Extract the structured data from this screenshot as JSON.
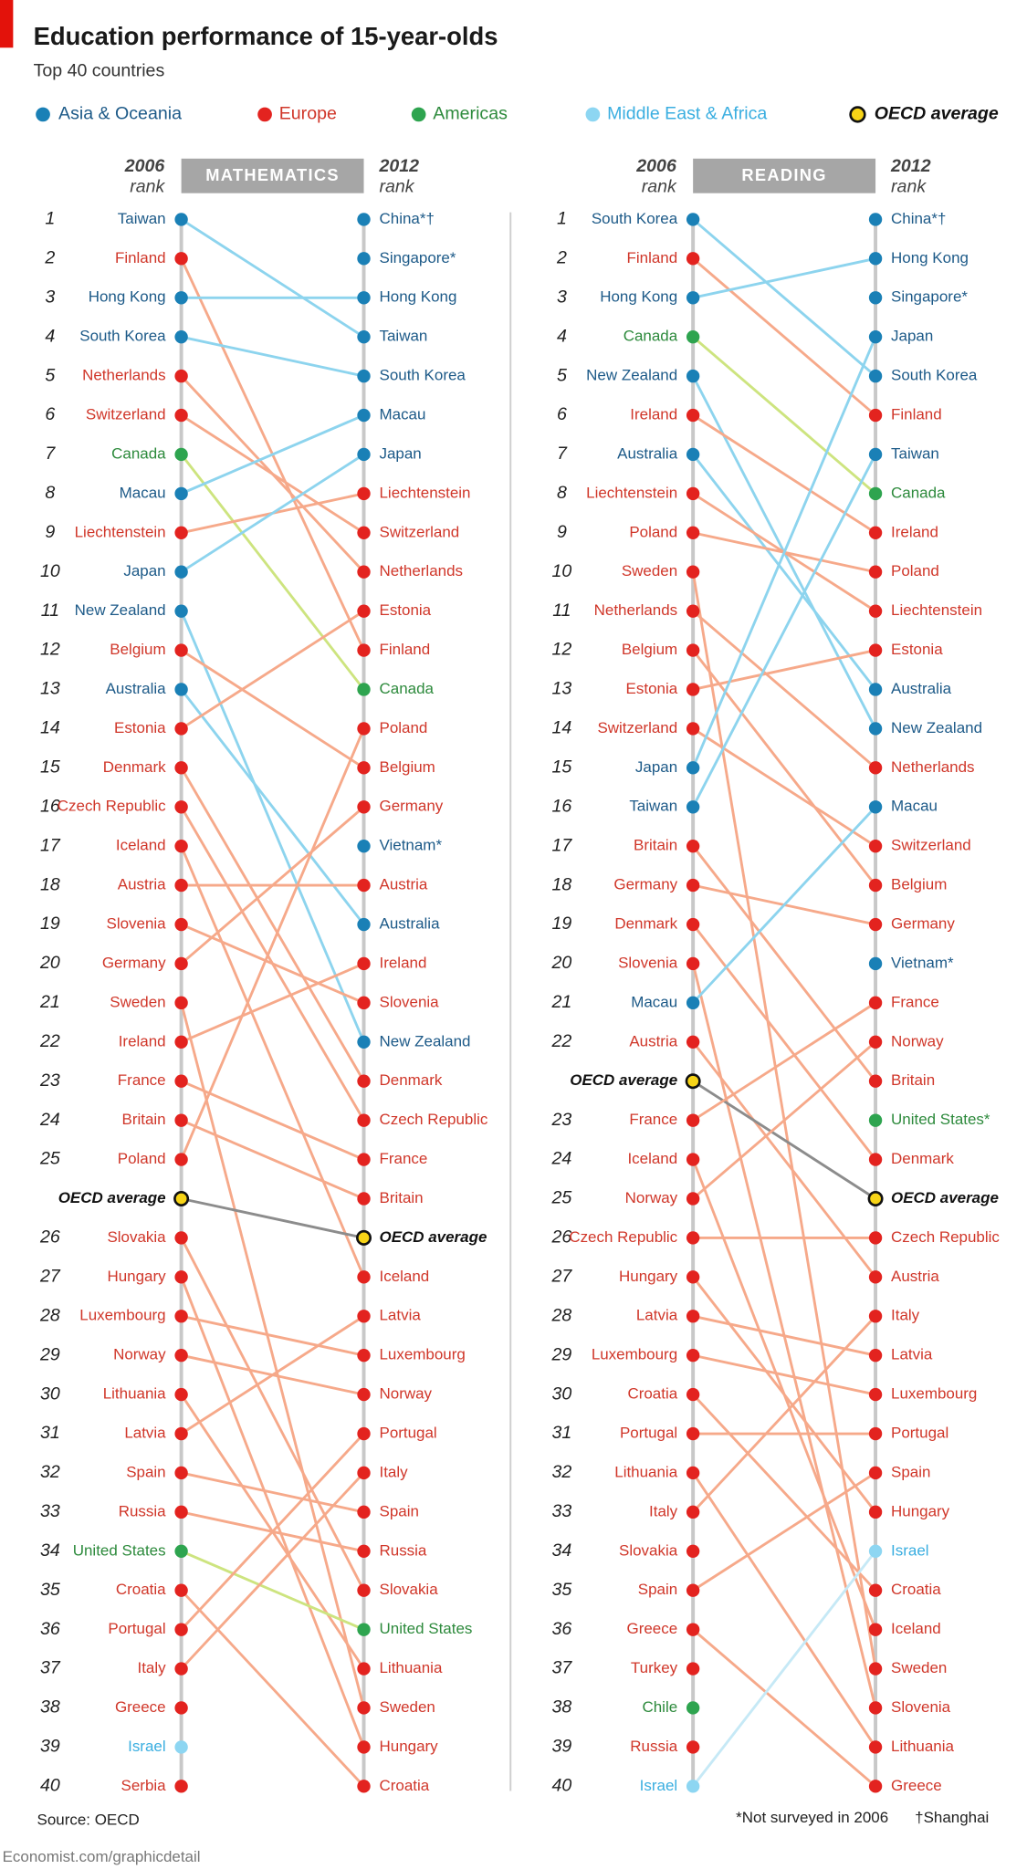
{
  "title": "Education performance of 15-year-olds",
  "subtitle": "Top 40 countries",
  "legend": [
    {
      "name": "Asia & Oceania",
      "color": "#1a80b6",
      "text_color": "#1d5a88",
      "line_color": "#8dd4ee"
    },
    {
      "name": "Europe",
      "color": "#e3231f",
      "text_color": "#d0372a",
      "line_color": "#f6a98a"
    },
    {
      "name": "Americas",
      "color": "#2ea44f",
      "text_color": "#2d8a3c",
      "line_color": "#cde47f"
    },
    {
      "name": "Middle East & Africa",
      "color": "#8dd6f2",
      "text_color": "#3aaee0",
      "line_color": "#c6e9f6"
    },
    {
      "name": "OECD average",
      "color": "#f7d417",
      "text_color": "#111111",
      "line_color": "#8c8c8c"
    }
  ],
  "charts": [
    {
      "heading": "MATHEMATICS",
      "left_header": [
        "2006",
        "rank"
      ],
      "right_header": [
        "2012",
        "rank"
      ],
      "left": [
        {
          "rank": 1,
          "name": "Taiwan",
          "region": "Asia & Oceania"
        },
        {
          "rank": 2,
          "name": "Finland",
          "region": "Europe"
        },
        {
          "rank": 3,
          "name": "Hong Kong",
          "region": "Asia & Oceania"
        },
        {
          "rank": 4,
          "name": "South Korea",
          "region": "Asia & Oceania"
        },
        {
          "rank": 5,
          "name": "Netherlands",
          "region": "Europe"
        },
        {
          "rank": 6,
          "name": "Switzerland",
          "region": "Europe"
        },
        {
          "rank": 7,
          "name": "Canada",
          "region": "Americas"
        },
        {
          "rank": 8,
          "name": "Macau",
          "region": "Asia & Oceania"
        },
        {
          "rank": 9,
          "name": "Liechtenstein",
          "region": "Europe"
        },
        {
          "rank": 10,
          "name": "Japan",
          "region": "Asia & Oceania"
        },
        {
          "rank": 11,
          "name": "New Zealand",
          "region": "Asia & Oceania"
        },
        {
          "rank": 12,
          "name": "Belgium",
          "region": "Europe"
        },
        {
          "rank": 13,
          "name": "Australia",
          "region": "Asia & Oceania"
        },
        {
          "rank": 14,
          "name": "Estonia",
          "region": "Europe"
        },
        {
          "rank": 15,
          "name": "Denmark",
          "region": "Europe"
        },
        {
          "rank": 16,
          "name": "Czech Republic",
          "region": "Europe"
        },
        {
          "rank": 17,
          "name": "Iceland",
          "region": "Europe"
        },
        {
          "rank": 18,
          "name": "Austria",
          "region": "Europe"
        },
        {
          "rank": 19,
          "name": "Slovenia",
          "region": "Europe"
        },
        {
          "rank": 20,
          "name": "Germany",
          "region": "Europe"
        },
        {
          "rank": 21,
          "name": "Sweden",
          "region": "Europe"
        },
        {
          "rank": 22,
          "name": "Ireland",
          "region": "Europe"
        },
        {
          "rank": 23,
          "name": "France",
          "region": "Europe"
        },
        {
          "rank": 24,
          "name": "Britain",
          "region": "Europe"
        },
        {
          "rank": 25,
          "name": "Poland",
          "region": "Europe"
        },
        {
          "name": "OECD average",
          "region": "OECD average"
        },
        {
          "rank": 26,
          "name": "Slovakia",
          "region": "Europe"
        },
        {
          "rank": 27,
          "name": "Hungary",
          "region": "Europe"
        },
        {
          "rank": 28,
          "name": "Luxembourg",
          "region": "Europe"
        },
        {
          "rank": 29,
          "name": "Norway",
          "region": "Europe"
        },
        {
          "rank": 30,
          "name": "Lithuania",
          "region": "Europe"
        },
        {
          "rank": 31,
          "name": "Latvia",
          "region": "Europe"
        },
        {
          "rank": 32,
          "name": "Spain",
          "region": "Europe"
        },
        {
          "rank": 33,
          "name": "Russia",
          "region": "Europe"
        },
        {
          "rank": 34,
          "name": "United States",
          "region": "Americas"
        },
        {
          "rank": 35,
          "name": "Croatia",
          "region": "Europe"
        },
        {
          "rank": 36,
          "name": "Portugal",
          "region": "Europe"
        },
        {
          "rank": 37,
          "name": "Italy",
          "region": "Europe"
        },
        {
          "rank": 38,
          "name": "Greece",
          "region": "Europe"
        },
        {
          "rank": 39,
          "name": "Israel",
          "region": "Middle East & Africa"
        },
        {
          "rank": 40,
          "name": "Serbia",
          "region": "Europe"
        }
      ],
      "right": [
        {
          "name": "China*†",
          "region": "Asia & Oceania"
        },
        {
          "name": "Singapore*",
          "region": "Asia & Oceania"
        },
        {
          "name": "Hong Kong",
          "region": "Asia & Oceania"
        },
        {
          "name": "Taiwan",
          "region": "Asia & Oceania"
        },
        {
          "name": "South Korea",
          "region": "Asia & Oceania"
        },
        {
          "name": "Macau",
          "region": "Asia & Oceania"
        },
        {
          "name": "Japan",
          "region": "Asia & Oceania"
        },
        {
          "name": "Liechtenstein",
          "region": "Europe"
        },
        {
          "name": "Switzerland",
          "region": "Europe"
        },
        {
          "name": "Netherlands",
          "region": "Europe"
        },
        {
          "name": "Estonia",
          "region": "Europe"
        },
        {
          "name": "Finland",
          "region": "Europe"
        },
        {
          "name": "Canada",
          "region": "Americas"
        },
        {
          "name": "Poland",
          "region": "Europe"
        },
        {
          "name": "Belgium",
          "region": "Europe"
        },
        {
          "name": "Germany",
          "region": "Europe"
        },
        {
          "name": "Vietnam*",
          "region": "Asia & Oceania"
        },
        {
          "name": "Austria",
          "region": "Europe"
        },
        {
          "name": "Australia",
          "region": "Asia & Oceania"
        },
        {
          "name": "Ireland",
          "region": "Europe"
        },
        {
          "name": "Slovenia",
          "region": "Europe"
        },
        {
          "name": "New Zealand",
          "region": "Asia & Oceania"
        },
        {
          "name": "Denmark",
          "region": "Europe"
        },
        {
          "name": "Czech Republic",
          "region": "Europe"
        },
        {
          "name": "France",
          "region": "Europe"
        },
        {
          "name": "Britain",
          "region": "Europe"
        },
        {
          "name": "OECD average",
          "region": "OECD average"
        },
        {
          "name": "Iceland",
          "region": "Europe"
        },
        {
          "name": "Latvia",
          "region": "Europe"
        },
        {
          "name": "Luxembourg",
          "region": "Europe"
        },
        {
          "name": "Norway",
          "region": "Europe"
        },
        {
          "name": "Portugal",
          "region": "Europe"
        },
        {
          "name": "Italy",
          "region": "Europe"
        },
        {
          "name": "Spain",
          "region": "Europe"
        },
        {
          "name": "Russia",
          "region": "Europe"
        },
        {
          "name": "Slovakia",
          "region": "Europe"
        },
        {
          "name": "United States",
          "region": "Americas"
        },
        {
          "name": "Lithuania",
          "region": "Europe"
        },
        {
          "name": "Sweden",
          "region": "Europe"
        },
        {
          "name": "Hungary",
          "region": "Europe"
        },
        {
          "name": "Croatia",
          "region": "Europe"
        }
      ]
    },
    {
      "heading": "READING",
      "left_header": [
        "2006",
        "rank"
      ],
      "right_header": [
        "2012",
        "rank"
      ],
      "left": [
        {
          "rank": 1,
          "name": "South Korea",
          "region": "Asia & Oceania"
        },
        {
          "rank": 2,
          "name": "Finland",
          "region": "Europe"
        },
        {
          "rank": 3,
          "name": "Hong Kong",
          "region": "Asia & Oceania"
        },
        {
          "rank": 4,
          "name": "Canada",
          "region": "Americas"
        },
        {
          "rank": 5,
          "name": "New Zealand",
          "region": "Asia & Oceania"
        },
        {
          "rank": 6,
          "name": "Ireland",
          "region": "Europe"
        },
        {
          "rank": 7,
          "name": "Australia",
          "region": "Asia & Oceania"
        },
        {
          "rank": 8,
          "name": "Liechtenstein",
          "region": "Europe"
        },
        {
          "rank": 9,
          "name": "Poland",
          "region": "Europe"
        },
        {
          "rank": 10,
          "name": "Sweden",
          "region": "Europe"
        },
        {
          "rank": 11,
          "name": "Netherlands",
          "region": "Europe"
        },
        {
          "rank": 12,
          "name": "Belgium",
          "region": "Europe"
        },
        {
          "rank": 13,
          "name": "Estonia",
          "region": "Europe"
        },
        {
          "rank": 14,
          "name": "Switzerland",
          "region": "Europe"
        },
        {
          "rank": 15,
          "name": "Japan",
          "region": "Asia & Oceania"
        },
        {
          "rank": 16,
          "name": "Taiwan",
          "region": "Asia & Oceania"
        },
        {
          "rank": 17,
          "name": "Britain",
          "region": "Europe"
        },
        {
          "rank": 18,
          "name": "Germany",
          "region": "Europe"
        },
        {
          "rank": 19,
          "name": "Denmark",
          "region": "Europe"
        },
        {
          "rank": 20,
          "name": "Slovenia",
          "region": "Europe"
        },
        {
          "rank": 21,
          "name": "Macau",
          "region": "Asia & Oceania"
        },
        {
          "rank": 22,
          "name": "Austria",
          "region": "Europe"
        },
        {
          "name": "OECD average",
          "region": "OECD average"
        },
        {
          "rank": 23,
          "name": "France",
          "region": "Europe"
        },
        {
          "rank": 24,
          "name": "Iceland",
          "region": "Europe"
        },
        {
          "rank": 25,
          "name": "Norway",
          "region": "Europe"
        },
        {
          "rank": 26,
          "name": "Czech Republic",
          "region": "Europe"
        },
        {
          "rank": 27,
          "name": "Hungary",
          "region": "Europe"
        },
        {
          "rank": 28,
          "name": "Latvia",
          "region": "Europe"
        },
        {
          "rank": 29,
          "name": "Luxembourg",
          "region": "Europe"
        },
        {
          "rank": 30,
          "name": "Croatia",
          "region": "Europe"
        },
        {
          "rank": 31,
          "name": "Portugal",
          "region": "Europe"
        },
        {
          "rank": 32,
          "name": "Lithuania",
          "region": "Europe"
        },
        {
          "rank": 33,
          "name": "Italy",
          "region": "Europe"
        },
        {
          "rank": 34,
          "name": "Slovakia",
          "region": "Europe"
        },
        {
          "rank": 35,
          "name": "Spain",
          "region": "Europe"
        },
        {
          "rank": 36,
          "name": "Greece",
          "region": "Europe"
        },
        {
          "rank": 37,
          "name": "Turkey",
          "region": "Europe"
        },
        {
          "rank": 38,
          "name": "Chile",
          "region": "Americas"
        },
        {
          "rank": 39,
          "name": "Russia",
          "region": "Europe"
        },
        {
          "rank": 40,
          "name": "Israel",
          "region": "Middle East & Africa"
        }
      ],
      "right": [
        {
          "name": "China*†",
          "region": "Asia & Oceania"
        },
        {
          "name": "Hong Kong",
          "region": "Asia & Oceania"
        },
        {
          "name": "Singapore*",
          "region": "Asia & Oceania"
        },
        {
          "name": "Japan",
          "region": "Asia & Oceania"
        },
        {
          "name": "South Korea",
          "region": "Asia & Oceania"
        },
        {
          "name": "Finland",
          "region": "Europe"
        },
        {
          "name": "Taiwan",
          "region": "Asia & Oceania"
        },
        {
          "name": "Canada",
          "region": "Americas"
        },
        {
          "name": "Ireland",
          "region": "Europe"
        },
        {
          "name": "Poland",
          "region": "Europe"
        },
        {
          "name": "Liechtenstein",
          "region": "Europe"
        },
        {
          "name": "Estonia",
          "region": "Europe"
        },
        {
          "name": "Australia",
          "region": "Asia & Oceania"
        },
        {
          "name": "New Zealand",
          "region": "Asia & Oceania"
        },
        {
          "name": "Netherlands",
          "region": "Europe"
        },
        {
          "name": "Macau",
          "region": "Asia & Oceania"
        },
        {
          "name": "Switzerland",
          "region": "Europe"
        },
        {
          "name": "Belgium",
          "region": "Europe"
        },
        {
          "name": "Germany",
          "region": "Europe"
        },
        {
          "name": "Vietnam*",
          "region": "Asia & Oceania"
        },
        {
          "name": "France",
          "region": "Europe"
        },
        {
          "name": "Norway",
          "region": "Europe"
        },
        {
          "name": "Britain",
          "region": "Europe"
        },
        {
          "name": "United States*",
          "region": "Americas"
        },
        {
          "name": "Denmark",
          "region": "Europe"
        },
        {
          "name": "OECD average",
          "region": "OECD average"
        },
        {
          "name": "Czech Republic",
          "region": "Europe"
        },
        {
          "name": "Austria",
          "region": "Europe"
        },
        {
          "name": "Italy",
          "region": "Europe"
        },
        {
          "name": "Latvia",
          "region": "Europe"
        },
        {
          "name": "Luxembourg",
          "region": "Europe"
        },
        {
          "name": "Portugal",
          "region": "Europe"
        },
        {
          "name": "Spain",
          "region": "Europe"
        },
        {
          "name": "Hungary",
          "region": "Europe"
        },
        {
          "name": "Israel",
          "region": "Middle East & Africa"
        },
        {
          "name": "Croatia",
          "region": "Europe"
        },
        {
          "name": "Iceland",
          "region": "Europe"
        },
        {
          "name": "Sweden",
          "region": "Europe"
        },
        {
          "name": "Slovenia",
          "region": "Europe"
        },
        {
          "name": "Lithuania",
          "region": "Europe"
        },
        {
          "name": "Greece",
          "region": "Europe"
        }
      ]
    }
  ],
  "footer": {
    "source": "Source: OECD",
    "note": "*Not surveyed in 2006",
    "note2": "†Shanghai",
    "url": "Economist.com/graphicdetail"
  }
}
